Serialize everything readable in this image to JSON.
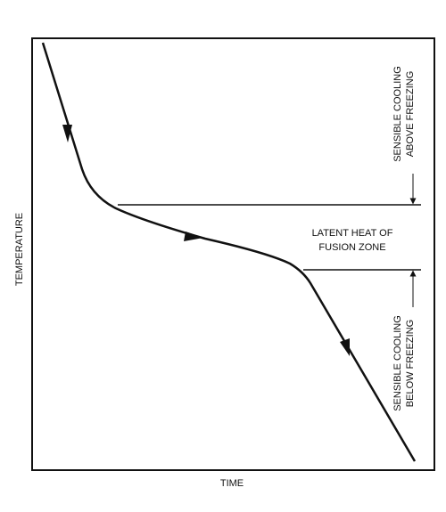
{
  "axes": {
    "y_label": "TEMPERATURE",
    "x_label": "TIME"
  },
  "annotations": {
    "above_freezing": [
      "SENSIBLE COOLING",
      "ABOVE FREEZING"
    ],
    "latent_heat": [
      "LATENT HEAT OF",
      "FUSION ZONE"
    ],
    "below_freezing": [
      "SENSIBLE COOLING",
      "BELOW FREEZING"
    ]
  }
}
